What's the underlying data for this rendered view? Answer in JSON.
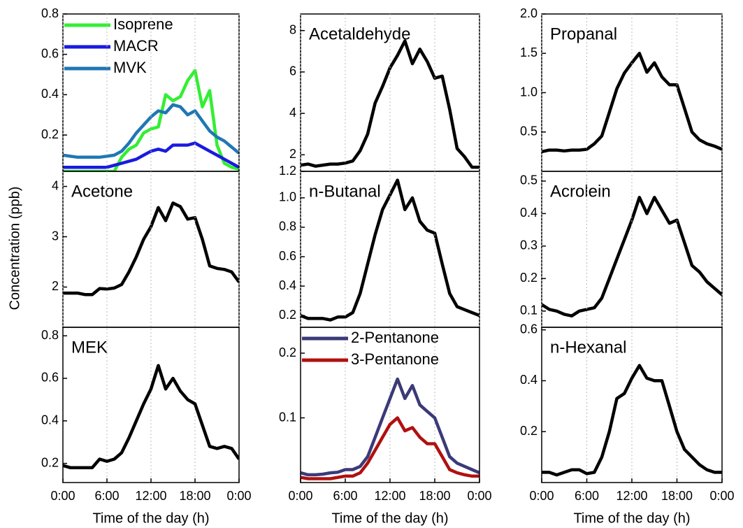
{
  "chart_data": [
    {
      "type": "line",
      "x": [
        0,
        1,
        2,
        3,
        4,
        5,
        6,
        7,
        8,
        9,
        10,
        11,
        12,
        13,
        14,
        15,
        16,
        17,
        18,
        19,
        20,
        21,
        22,
        23,
        24
      ],
      "xlim": [
        0,
        24
      ],
      "ylim": [
        0.02,
        0.8
      ],
      "yticks": [
        0.2,
        0.4,
        0.6,
        0.8
      ],
      "series": [
        {
          "name": "Isoprene",
          "color": "#33ee33",
          "values": [
            0.02,
            0.02,
            0.02,
            0.02,
            0.02,
            0.02,
            0.02,
            0.02,
            0.09,
            0.13,
            0.15,
            0.21,
            0.23,
            0.24,
            0.4,
            0.37,
            0.39,
            0.47,
            0.52,
            0.34,
            0.42,
            0.15,
            0.06,
            0.04,
            0.03
          ]
        },
        {
          "name": "MACR",
          "color": "#1a1ae0",
          "values": [
            0.04,
            0.04,
            0.04,
            0.04,
            0.04,
            0.04,
            0.04,
            0.05,
            0.06,
            0.07,
            0.08,
            0.1,
            0.12,
            0.13,
            0.12,
            0.15,
            0.15,
            0.15,
            0.16,
            0.14,
            0.12,
            0.1,
            0.08,
            0.06,
            0.04
          ]
        },
        {
          "name": "MVK",
          "color": "#1f77b4",
          "values": [
            0.1,
            0.095,
            0.09,
            0.09,
            0.09,
            0.09,
            0.095,
            0.1,
            0.12,
            0.16,
            0.21,
            0.25,
            0.29,
            0.32,
            0.31,
            0.35,
            0.34,
            0.3,
            0.32,
            0.27,
            0.22,
            0.19,
            0.17,
            0.14,
            0.11
          ]
        }
      ]
    },
    {
      "type": "line",
      "title": "Acetaldehyde",
      "x": [
        0,
        1,
        2,
        3,
        4,
        5,
        6,
        7,
        8,
        9,
        10,
        11,
        12,
        13,
        14,
        15,
        16,
        17,
        18,
        19,
        20,
        21,
        22,
        23,
        24
      ],
      "xlim": [
        0,
        24
      ],
      "ylim": [
        1.2,
        8.8
      ],
      "yticks": [
        1.2,
        2,
        4,
        6,
        8
      ],
      "color": "#000000",
      "values": [
        1.5,
        1.55,
        1.45,
        1.5,
        1.55,
        1.55,
        1.6,
        1.7,
        2.2,
        3.0,
        4.5,
        5.3,
        6.2,
        6.8,
        7.5,
        6.4,
        7.1,
        6.5,
        5.7,
        5.8,
        4.2,
        2.3,
        1.9,
        1.4,
        1.4
      ]
    },
    {
      "type": "line",
      "title": "Propanal",
      "x": [
        0,
        1,
        2,
        3,
        4,
        5,
        6,
        7,
        8,
        9,
        10,
        11,
        12,
        13,
        14,
        15,
        16,
        17,
        18,
        19,
        20,
        21,
        22,
        23,
        24
      ],
      "xlim": [
        0,
        24
      ],
      "ylim": [
        0,
        2
      ],
      "yticks": [
        0.5,
        {
          "value": 1,
          "label": "1.0"
        },
        1.5,
        {
          "value": 2,
          "label": "2.0"
        }
      ],
      "color": "#000000",
      "values": [
        0.25,
        0.27,
        0.27,
        0.26,
        0.27,
        0.27,
        0.28,
        0.35,
        0.45,
        0.75,
        1.05,
        1.25,
        1.38,
        1.5,
        1.26,
        1.38,
        1.2,
        1.1,
        1.1,
        0.8,
        0.5,
        0.4,
        0.35,
        0.32,
        0.28
      ]
    },
    {
      "type": "line",
      "title": "Acetone",
      "ylabel": "Concentration (ppb)",
      "x": [
        0,
        1,
        2,
        3,
        4,
        5,
        6,
        7,
        8,
        9,
        10,
        11,
        12,
        13,
        14,
        15,
        16,
        17,
        18,
        19,
        20,
        21,
        22,
        23,
        24
      ],
      "xlim": [
        0,
        24
      ],
      "ylim": [
        1.2,
        4.3
      ],
      "yticks": [
        2,
        3,
        4
      ],
      "color": "#000000",
      "values": [
        1.88,
        1.88,
        1.88,
        1.85,
        1.85,
        1.97,
        1.96,
        1.98,
        2.05,
        2.3,
        2.6,
        2.95,
        3.2,
        3.58,
        3.32,
        3.67,
        3.6,
        3.35,
        3.38,
        2.95,
        2.42,
        2.37,
        2.35,
        2.3,
        2.1
      ]
    },
    {
      "type": "line",
      "title": "n-Butanal",
      "x": [
        0,
        1,
        2,
        3,
        4,
        5,
        6,
        7,
        8,
        9,
        10,
        11,
        12,
        13,
        14,
        15,
        16,
        17,
        18,
        19,
        20,
        21,
        22,
        23,
        24
      ],
      "xlim": [
        0,
        24
      ],
      "ylim": [
        0.12,
        1.18
      ],
      "yticks": [
        0.2,
        0.4,
        0.6,
        0.8,
        {
          "value": 1,
          "label": "1.0"
        }
      ],
      "color": "#000000",
      "values": [
        0.2,
        0.18,
        0.18,
        0.18,
        0.17,
        0.19,
        0.19,
        0.22,
        0.35,
        0.55,
        0.75,
        0.92,
        1.02,
        1.12,
        0.92,
        1.0,
        0.84,
        0.78,
        0.76,
        0.55,
        0.35,
        0.26,
        0.24,
        0.22,
        0.2
      ]
    },
    {
      "type": "line",
      "title": "Acrolein",
      "x": [
        0,
        1,
        2,
        3,
        4,
        5,
        6,
        7,
        8,
        9,
        10,
        11,
        12,
        13,
        14,
        15,
        16,
        17,
        18,
        19,
        20,
        21,
        22,
        23,
        24
      ],
      "xlim": [
        0,
        24
      ],
      "ylim": [
        0.05,
        0.53
      ],
      "yticks": [
        0.1,
        0.2,
        0.3,
        0.4,
        0.5
      ],
      "color": "#000000",
      "values": [
        0.12,
        0.105,
        0.1,
        0.09,
        0.085,
        0.1,
        0.105,
        0.11,
        0.14,
        0.2,
        0.26,
        0.32,
        0.38,
        0.45,
        0.4,
        0.45,
        0.41,
        0.37,
        0.38,
        0.31,
        0.24,
        0.22,
        0.19,
        0.17,
        0.15
      ]
    },
    {
      "type": "line",
      "title": "MEK",
      "xlabel": "Time of the day (h)",
      "x": [
        0,
        1,
        2,
        3,
        4,
        5,
        6,
        7,
        8,
        9,
        10,
        11,
        12,
        13,
        14,
        15,
        16,
        17,
        18,
        19,
        20,
        21,
        22,
        23,
        24
      ],
      "xlim": [
        0,
        24
      ],
      "ylim": [
        0.11,
        0.84
      ],
      "yticks": [
        0.2,
        0.4,
        0.6,
        0.8
      ],
      "xticks": [
        {
          "value": 0,
          "label": "0:00"
        },
        {
          "value": 6,
          "label": "6:00"
        },
        {
          "value": 12,
          "label": "12:00"
        },
        {
          "value": 18,
          "label": "18:00"
        },
        {
          "value": 24,
          "label": "0:00"
        }
      ],
      "color": "#000000",
      "values": [
        0.19,
        0.18,
        0.18,
        0.18,
        0.18,
        0.22,
        0.21,
        0.22,
        0.25,
        0.32,
        0.4,
        0.48,
        0.55,
        0.66,
        0.55,
        0.6,
        0.54,
        0.5,
        0.48,
        0.38,
        0.28,
        0.27,
        0.28,
        0.27,
        0.22
      ]
    },
    {
      "type": "line",
      "xlabel": "Time of the day (h)",
      "x": [
        0,
        1,
        2,
        3,
        4,
        5,
        6,
        7,
        8,
        9,
        10,
        11,
        12,
        13,
        14,
        15,
        16,
        17,
        18,
        19,
        20,
        21,
        22,
        23,
        24
      ],
      "xlim": [
        0,
        24
      ],
      "ylim": [
        0,
        0.24
      ],
      "yticks": [
        0.1,
        0.2
      ],
      "xticks": [
        {
          "value": 0,
          "label": "0:00"
        },
        {
          "value": 6,
          "label": "6:00"
        },
        {
          "value": 12,
          "label": "12:00"
        },
        {
          "value": 18,
          "label": "18:00"
        },
        {
          "value": 24,
          "label": "0:00"
        }
      ],
      "series": [
        {
          "name": "2-Pentanone",
          "color": "#3b3a78",
          "values": [
            0.015,
            0.012,
            0.012,
            0.013,
            0.015,
            0.016,
            0.02,
            0.02,
            0.025,
            0.04,
            0.07,
            0.1,
            0.13,
            0.16,
            0.13,
            0.15,
            0.12,
            0.11,
            0.1,
            0.07,
            0.04,
            0.03,
            0.025,
            0.02,
            0.015
          ]
        },
        {
          "name": "3-Pentanone",
          "color": "#b01010",
          "values": [
            0.008,
            0.006,
            0.006,
            0.006,
            0.006,
            0.008,
            0.01,
            0.01,
            0.015,
            0.03,
            0.05,
            0.07,
            0.09,
            0.1,
            0.08,
            0.085,
            0.07,
            0.06,
            0.06,
            0.04,
            0.02,
            0.015,
            0.012,
            0.01,
            0.01
          ]
        }
      ]
    },
    {
      "type": "line",
      "title": "n-Hexanal",
      "xlabel": "Time of the day (h)",
      "x": [
        0,
        1,
        2,
        3,
        4,
        5,
        6,
        7,
        8,
        9,
        10,
        11,
        12,
        13,
        14,
        15,
        16,
        17,
        18,
        19,
        20,
        21,
        22,
        23,
        24
      ],
      "xlim": [
        0,
        24
      ],
      "ylim": [
        0,
        0.61
      ],
      "yticks": [
        0.2,
        0.4,
        0.6
      ],
      "xticks": [
        {
          "value": 0,
          "label": "0:00"
        },
        {
          "value": 6,
          "label": "6:00"
        },
        {
          "value": 12,
          "label": "12:00"
        },
        {
          "value": 18,
          "label": "18:00"
        },
        {
          "value": 24,
          "label": "0:00"
        }
      ],
      "color": "#000000",
      "values": [
        0.04,
        0.04,
        0.03,
        0.04,
        0.05,
        0.05,
        0.035,
        0.04,
        0.1,
        0.2,
        0.33,
        0.35,
        0.41,
        0.46,
        0.41,
        0.4,
        0.4,
        0.3,
        0.2,
        0.13,
        0.1,
        0.07,
        0.05,
        0.04,
        0.04
      ]
    }
  ]
}
